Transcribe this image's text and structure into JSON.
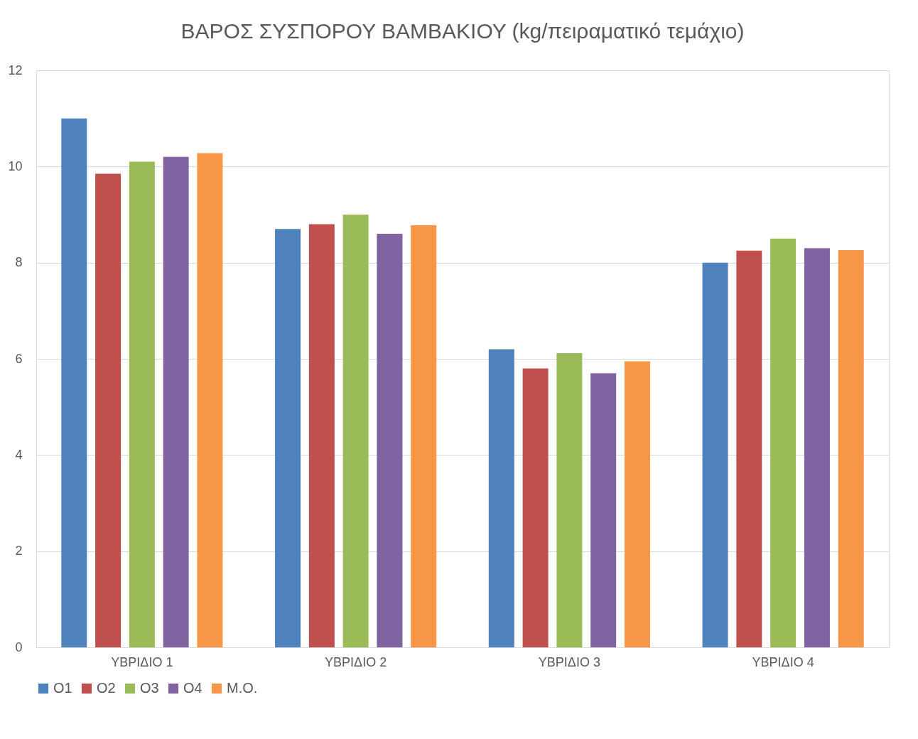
{
  "chart_data": {
    "type": "bar",
    "title": "ΒΑΡΟΣ ΣΥΣΠΟΡΟΥ ΒΑΜΒΑΚΙΟΥ (kg/πειραματικό τεμάχιο)",
    "categories": [
      "ΥΒΡΙΔΙΟ 1",
      "ΥΒΡΙΔΙΟ 2",
      "ΥΒΡΙΔΙΟ 3",
      "ΥΒΡΙΔΙΟ 4"
    ],
    "series": [
      {
        "name": "Ο1",
        "color": "#4f81bd",
        "values": [
          11.0,
          8.7,
          6.2,
          8.0
        ]
      },
      {
        "name": "Ο2",
        "color": "#c0504d",
        "values": [
          9.85,
          8.8,
          5.8,
          8.25
        ]
      },
      {
        "name": "Ο3",
        "color": "#9bbb59",
        "values": [
          10.1,
          9.0,
          6.12,
          8.5
        ]
      },
      {
        "name": "Ο4",
        "color": "#8064a2",
        "values": [
          10.2,
          8.6,
          5.7,
          8.3
        ]
      },
      {
        "name": "Μ.Ο.",
        "color": "#f79646",
        "values": [
          10.28,
          8.78,
          5.95,
          8.26
        ]
      }
    ],
    "ylim": [
      0,
      12
    ],
    "yticks": [
      0,
      2,
      4,
      6,
      8,
      10,
      12
    ],
    "grid": "y",
    "legend": "bottom"
  }
}
